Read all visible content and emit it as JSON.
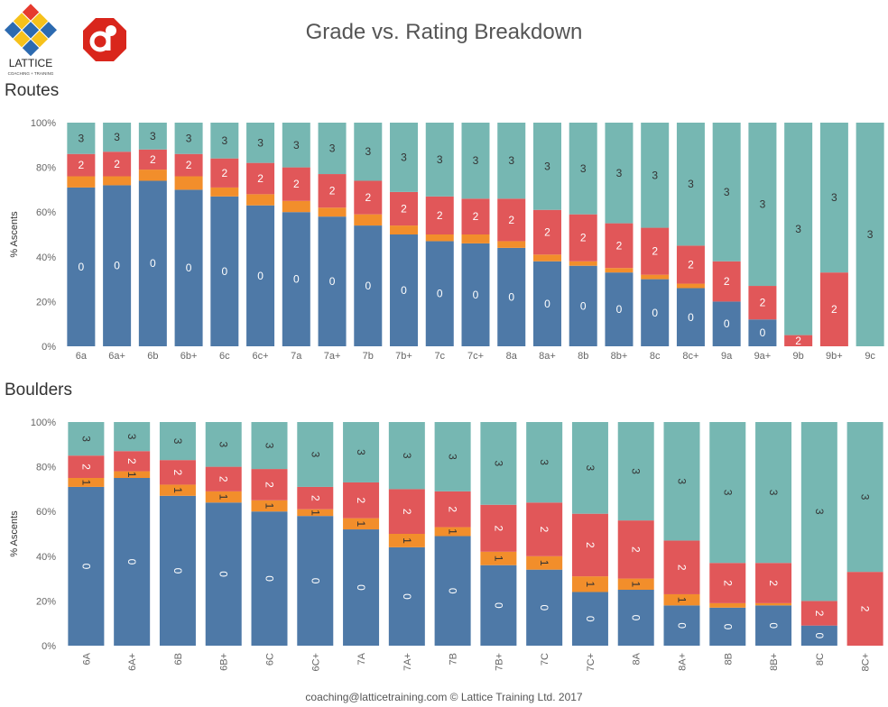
{
  "page": {
    "title": "Grade vs. Rating Breakdown",
    "footer": "coaching@latticetraining.com © Lattice Training Ltd. 2017",
    "logo_text": "LATTICE",
    "logo_subtext": "COACHING + TRAINING"
  },
  "colors": {
    "r0": "#4e79a7",
    "r1": "#f28e2b",
    "r2": "#e15759",
    "r3": "#76b7b2",
    "logo_red": "#d9261c"
  },
  "chart_data": [
    {
      "type": "bar",
      "stacked": true,
      "section_title": "Routes",
      "ylabel": "% Ascents",
      "ylim": [
        0,
        100
      ],
      "yticks": [
        "0%",
        "20%",
        "40%",
        "60%",
        "80%",
        "100%"
      ],
      "categories": [
        "6a",
        "6a+",
        "6b",
        "6b+",
        "6c",
        "6c+",
        "7a",
        "7a+",
        "7b",
        "7b+",
        "7c",
        "7c+",
        "8a",
        "8a+",
        "8b",
        "8b+",
        "8c",
        "8c+",
        "9a",
        "9a+",
        "9b",
        "9b+",
        "9c"
      ],
      "series": [
        {
          "name": "0",
          "values": [
            71,
            72,
            74,
            70,
            67,
            63,
            60,
            58,
            54,
            50,
            47,
            46,
            44,
            38,
            36,
            33,
            30,
            26,
            20,
            12,
            0,
            0,
            0
          ]
        },
        {
          "name": "1",
          "values": [
            5,
            4,
            5,
            6,
            4,
            5,
            5,
            4,
            5,
            4,
            3,
            4,
            3,
            3,
            2,
            2,
            2,
            2,
            0,
            0,
            0,
            0,
            0
          ]
        },
        {
          "name": "2",
          "values": [
            10,
            11,
            9,
            10,
            13,
            14,
            15,
            15,
            15,
            15,
            17,
            16,
            19,
            20,
            21,
            20,
            21,
            17,
            18,
            15,
            5,
            33,
            0
          ]
        },
        {
          "name": "3",
          "values": [
            14,
            13,
            12,
            14,
            16,
            18,
            20,
            23,
            26,
            31,
            33,
            34,
            34,
            39,
            41,
            45,
            47,
            55,
            62,
            73,
            95,
            67,
            100
          ]
        }
      ],
      "labels_shown": [
        "0",
        "",
        "2",
        "3"
      ],
      "label_rotation": "horizontal"
    },
    {
      "type": "bar",
      "stacked": true,
      "section_title": "Boulders",
      "ylabel": "% Ascents",
      "ylim": [
        0,
        100
      ],
      "yticks": [
        "0%",
        "20%",
        "40%",
        "60%",
        "80%",
        "100%"
      ],
      "categories": [
        "6A",
        "6A+",
        "6B",
        "6B+",
        "6C",
        "6C+",
        "7A",
        "7A+",
        "7B",
        "7B+",
        "7C",
        "7C+",
        "8A",
        "8A+",
        "8B",
        "8B+",
        "8C",
        "8C+"
      ],
      "series": [
        {
          "name": "0",
          "values": [
            71,
            75,
            67,
            64,
            60,
            58,
            52,
            44,
            49,
            36,
            34,
            24,
            25,
            18,
            17,
            18,
            9,
            0
          ]
        },
        {
          "name": "1",
          "values": [
            4,
            3,
            5,
            5,
            5,
            3,
            5,
            6,
            4,
            6,
            6,
            7,
            5,
            5,
            2,
            1,
            0,
            0
          ]
        },
        {
          "name": "2",
          "values": [
            10,
            9,
            11,
            11,
            14,
            10,
            16,
            20,
            16,
            21,
            24,
            28,
            26,
            24,
            18,
            18,
            11,
            33
          ]
        },
        {
          "name": "3",
          "values": [
            15,
            13,
            17,
            20,
            21,
            29,
            27,
            30,
            31,
            37,
            36,
            41,
            44,
            53,
            63,
            63,
            80,
            67
          ]
        }
      ],
      "labels_shown": [
        "0",
        "1",
        "2",
        "3"
      ],
      "label_rotation": "vertical"
    }
  ]
}
